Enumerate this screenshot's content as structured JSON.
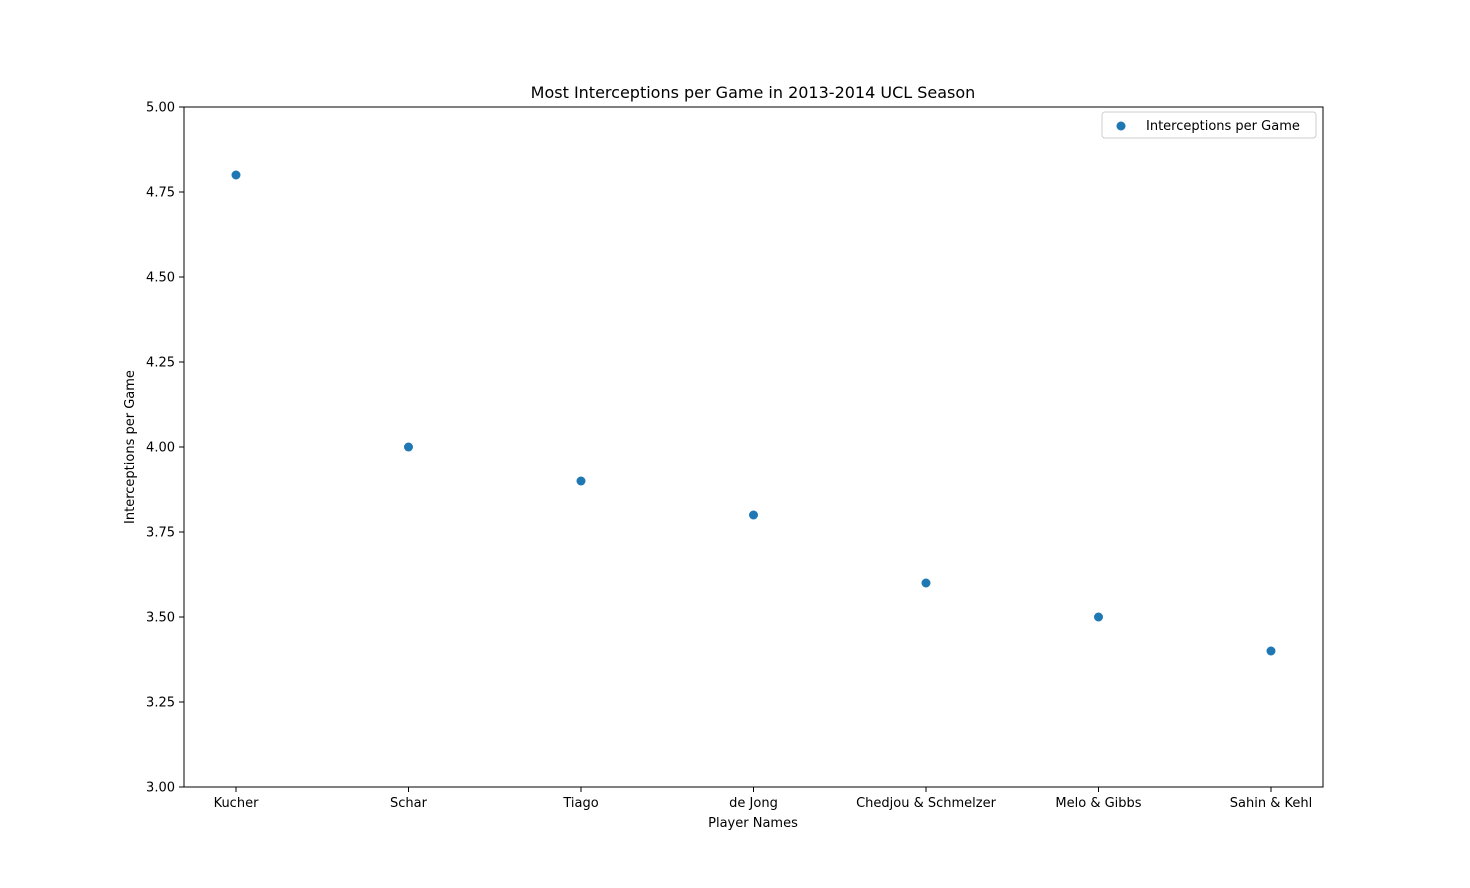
{
  "chart_data": {
    "type": "scatter",
    "title": "Most Interceptions per Game in 2013-2014 UCL Season",
    "xlabel": "Player Names",
    "ylabel": "Interceptions per Game",
    "categories": [
      "Kucher",
      "Schar",
      "Tiago",
      "de Jong",
      "Chedjou & Schmelzer",
      "Melo & Gibbs",
      "Sahin & Kehl"
    ],
    "series": [
      {
        "name": "Interceptions per Game",
        "values": [
          4.8,
          4.0,
          3.9,
          3.8,
          3.6,
          3.5,
          3.4
        ],
        "color": "#1f77b4"
      }
    ],
    "ylim": [
      3.0,
      5.0
    ],
    "yticks": [
      3.0,
      3.25,
      3.5,
      3.75,
      4.0,
      4.25,
      4.5,
      4.75,
      5.0
    ],
    "ytick_labels": [
      "3.00",
      "3.25",
      "3.50",
      "3.75",
      "4.00",
      "4.25",
      "4.50",
      "4.75",
      "5.00"
    ],
    "grid": false,
    "legend_position": "top-right"
  }
}
